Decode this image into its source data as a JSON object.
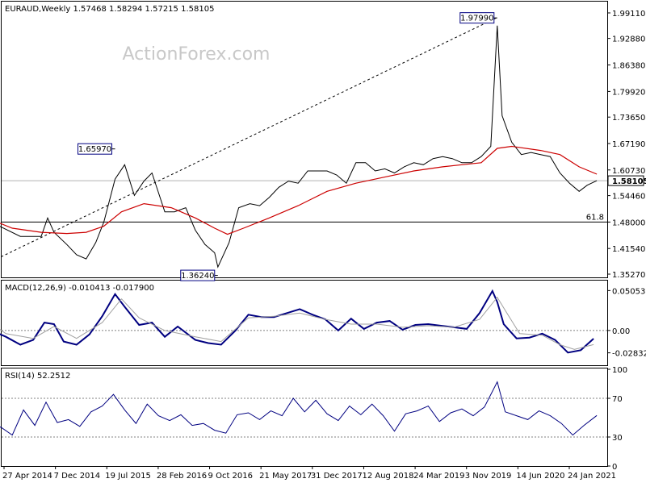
{
  "chart_data": [
    {
      "type": "line",
      "panel": "price",
      "title": "EURAUD,Weekly  1.57468 1.58294 1.57215 1.58105",
      "watermark": "ActionForex.com",
      "y_ticks": [
        "1.99110",
        "1.92880",
        "1.86380",
        "1.79920",
        "1.73650",
        "1.67190",
        "1.60730",
        "1.54460",
        "1.48000",
        "1.41540",
        "1.35270"
      ],
      "ylim": [
        1.3527,
        1.9911
      ],
      "current_price": 1.58105,
      "current_price_label": "1.58105",
      "fib_level": 1.48,
      "fib_label": "61.8",
      "callouts": [
        {
          "label": "1.97990",
          "date": "2020-03-16",
          "value": 1.9799
        },
        {
          "label": "1.65970",
          "date": "2015-08-24",
          "value": 1.6597
        },
        {
          "label": "1.36240",
          "date": "2016-11-14",
          "value": 1.3624
        }
      ],
      "trendline": [
        {
          "date": "2014-04-14",
          "value": 1.395
        },
        {
          "date": "2020-03-16",
          "value": 1.9799
        }
      ],
      "series": [
        {
          "color": "#000000",
          "x": [
            "2014-01-06",
            "2014-04-07",
            "2014-07-07",
            "2014-10-06",
            "2014-11-03",
            "2014-12-01",
            "2015-01-26",
            "2015-03-09",
            "2015-04-20",
            "2015-06-01",
            "2015-07-06",
            "2015-08-24",
            "2015-10-05",
            "2015-11-16",
            "2015-12-28",
            "2016-02-01",
            "2016-03-28",
            "2016-05-09",
            "2016-06-27",
            "2016-08-08",
            "2016-09-19",
            "2016-10-31",
            "2016-11-14",
            "2017-01-02",
            "2017-02-13",
            "2017-04-03",
            "2017-05-15",
            "2017-06-26",
            "2017-08-07",
            "2017-09-18",
            "2017-10-30",
            "2017-12-11",
            "2018-01-22",
            "2018-03-05",
            "2018-04-16",
            "2018-05-28",
            "2018-07-09",
            "2018-08-20",
            "2018-10-01",
            "2018-11-12",
            "2018-12-24",
            "2019-02-04",
            "2019-03-18",
            "2019-04-29",
            "2019-06-10",
            "2019-07-22",
            "2019-09-02",
            "2019-10-14",
            "2019-11-25",
            "2020-01-06",
            "2020-02-17",
            "2020-03-16",
            "2020-04-06",
            "2020-05-18",
            "2020-06-29",
            "2020-08-10",
            "2020-09-21",
            "2020-11-02",
            "2020-12-14",
            "2021-01-25",
            "2021-03-08",
            "2021-04-12",
            "2021-05-24"
          ],
          "values": [
            1.505,
            1.47,
            1.445,
            1.445,
            1.49,
            1.455,
            1.425,
            1.4,
            1.39,
            1.43,
            1.48,
            1.585,
            1.62,
            1.545,
            1.58,
            1.6,
            1.505,
            1.505,
            1.515,
            1.46,
            1.425,
            1.405,
            1.37,
            1.43,
            1.515,
            1.525,
            1.52,
            1.54,
            1.565,
            1.58,
            1.575,
            1.605,
            1.605,
            1.605,
            1.595,
            1.575,
            1.625,
            1.625,
            1.605,
            1.61,
            1.6,
            1.615,
            1.625,
            1.62,
            1.635,
            1.64,
            1.635,
            1.625,
            1.625,
            1.64,
            1.665,
            1.96,
            1.74,
            1.675,
            1.645,
            1.65,
            1.645,
            1.64,
            1.6,
            1.575,
            1.555,
            1.57,
            1.581
          ]
        },
        {
          "color": "#cc0000",
          "x": [
            "2014-01-06",
            "2014-06-02",
            "2014-10-06",
            "2015-01-26",
            "2015-04-20",
            "2015-07-06",
            "2015-09-21",
            "2015-12-28",
            "2016-04-25",
            "2016-08-08",
            "2016-10-31",
            "2016-12-26",
            "2017-03-06",
            "2017-06-26",
            "2017-10-30",
            "2018-03-05",
            "2018-07-09",
            "2018-11-12",
            "2019-03-18",
            "2019-07-22",
            "2019-10-14",
            "2020-01-06",
            "2020-03-16",
            "2020-05-18",
            "2020-09-21",
            "2020-12-14",
            "2021-03-08",
            "2021-05-24"
          ],
          "values": [
            1.498,
            1.465,
            1.455,
            1.452,
            1.455,
            1.47,
            1.505,
            1.525,
            1.515,
            1.49,
            1.465,
            1.45,
            1.465,
            1.49,
            1.52,
            1.555,
            1.575,
            1.59,
            1.605,
            1.615,
            1.62,
            1.625,
            1.66,
            1.665,
            1.655,
            1.645,
            1.615,
            1.597
          ]
        }
      ]
    },
    {
      "type": "line",
      "panel": "macd",
      "title": "MACD(12,26,9) -0.010413 -0.017900",
      "y_ticks": [
        "0.05053",
        "0.00",
        "-0.028323"
      ],
      "ylim": [
        -0.042,
        0.056
      ],
      "series": [
        {
          "color": "#000080",
          "x": [
            "2014-01-06",
            "2014-03-03",
            "2014-05-05",
            "2014-07-07",
            "2014-09-01",
            "2014-10-20",
            "2014-12-01",
            "2015-01-12",
            "2015-03-09",
            "2015-05-04",
            "2015-06-29",
            "2015-08-24",
            "2015-10-05",
            "2015-12-07",
            "2016-02-01",
            "2016-03-28",
            "2016-05-23",
            "2016-08-08",
            "2016-10-03",
            "2016-11-28",
            "2017-01-30",
            "2017-03-27",
            "2017-05-22",
            "2017-07-17",
            "2017-09-11",
            "2017-11-06",
            "2018-01-01",
            "2018-02-26",
            "2018-04-23",
            "2018-06-18",
            "2018-08-13",
            "2018-10-08",
            "2018-12-03",
            "2019-01-28",
            "2019-03-25",
            "2019-05-20",
            "2019-07-15",
            "2019-09-09",
            "2019-11-04",
            "2019-12-30",
            "2020-02-24",
            "2020-03-16",
            "2020-04-13",
            "2020-06-08",
            "2020-08-03",
            "2020-09-28",
            "2020-11-23",
            "2021-01-18",
            "2021-03-15",
            "2021-05-10"
          ],
          "values": [
            0.012,
            0.0,
            -0.008,
            -0.018,
            -0.012,
            0.01,
            0.008,
            -0.014,
            -0.018,
            -0.005,
            0.018,
            0.046,
            0.03,
            0.007,
            0.01,
            -0.008,
            0.005,
            -0.012,
            -0.016,
            -0.018,
            0.0,
            0.02,
            0.017,
            0.017,
            0.022,
            0.027,
            0.02,
            0.014,
            0.0,
            0.015,
            0.002,
            0.01,
            0.012,
            0.001,
            0.007,
            0.008,
            0.006,
            0.004,
            0.002,
            0.022,
            0.05,
            0.036,
            0.008,
            -0.01,
            -0.009,
            -0.004,
            -0.012,
            -0.028,
            -0.025,
            -0.0104
          ]
        },
        {
          "color": "#a0a0a0",
          "x": [
            "2014-01-06",
            "2014-05-05",
            "2014-09-01",
            "2014-12-01",
            "2015-03-09",
            "2015-06-29",
            "2015-09-21",
            "2015-12-07",
            "2016-03-28",
            "2016-08-08",
            "2016-11-28",
            "2017-03-27",
            "2017-07-17",
            "2017-11-06",
            "2018-02-26",
            "2018-06-18",
            "2018-10-08",
            "2019-01-28",
            "2019-05-20",
            "2019-09-09",
            "2019-12-30",
            "2020-03-16",
            "2020-04-27",
            "2020-06-22",
            "2020-09-28",
            "2020-12-14",
            "2021-02-15",
            "2021-05-10"
          ],
          "values": [
            0.02,
            -0.004,
            -0.01,
            0.005,
            -0.01,
            0.01,
            0.04,
            0.016,
            0.0,
            -0.008,
            -0.014,
            0.016,
            0.018,
            0.022,
            0.014,
            0.008,
            0.008,
            0.004,
            0.006,
            0.004,
            0.014,
            0.042,
            0.022,
            -0.004,
            -0.006,
            -0.018,
            -0.024,
            -0.0179
          ]
        }
      ]
    },
    {
      "type": "line",
      "panel": "rsi",
      "title": "RSI(14) 52.2512",
      "y_ticks": [
        "100",
        "70",
        "30",
        "0"
      ],
      "ylim": [
        0,
        100
      ],
      "levels": [
        70,
        30
      ],
      "series": [
        {
          "color": "#000080",
          "x": [
            "2014-01-06",
            "2014-02-24",
            "2014-04-14",
            "2014-06-02",
            "2014-07-21",
            "2014-09-08",
            "2014-10-27",
            "2014-12-15",
            "2015-02-02",
            "2015-03-23",
            "2015-05-11",
            "2015-06-29",
            "2015-08-17",
            "2015-10-05",
            "2015-11-23",
            "2016-01-11",
            "2016-02-29",
            "2016-04-18",
            "2016-06-06",
            "2016-07-25",
            "2016-09-12",
            "2016-10-31",
            "2016-12-19",
            "2017-02-06",
            "2017-03-27",
            "2017-05-15",
            "2017-07-03",
            "2017-08-21",
            "2017-10-09",
            "2017-11-27",
            "2018-01-15",
            "2018-03-05",
            "2018-04-23",
            "2018-06-11",
            "2018-07-30",
            "2018-09-17",
            "2018-11-05",
            "2018-12-24",
            "2019-02-11",
            "2019-04-01",
            "2019-05-20",
            "2019-07-08",
            "2019-08-26",
            "2019-10-14",
            "2019-12-02",
            "2020-01-20",
            "2020-03-16",
            "2020-04-20",
            "2020-06-08",
            "2020-07-27",
            "2020-09-14",
            "2020-11-02",
            "2020-12-21",
            "2021-02-08",
            "2021-03-29",
            "2021-05-24"
          ],
          "values": [
            52,
            44,
            40,
            32,
            58,
            42,
            66,
            45,
            48,
            41,
            56,
            62,
            74,
            58,
            44,
            64,
            52,
            47,
            53,
            42,
            44,
            37,
            34,
            53,
            55,
            48,
            57,
            52,
            70,
            56,
            68,
            54,
            47,
            62,
            53,
            64,
            52,
            36,
            54,
            57,
            62,
            46,
            55,
            59,
            52,
            61,
            87,
            56,
            52,
            48,
            57,
            52,
            44,
            32,
            42,
            52.25
          ]
        }
      ]
    }
  ],
  "x_axis_labels": [
    "27 Apr 2014",
    "7 Dec 2014",
    "19 Jul 2015",
    "28 Feb 2016",
    "9 Oct 2016",
    "21 May 2017",
    "31 Dec 2017",
    "12 Aug 2018",
    "24 Mar 2019",
    "3 Nov 2019",
    "14 Jun 2020",
    "24 Jan 2021"
  ],
  "colors": {
    "price": "#000000",
    "moving_average": "#cc0000",
    "indicator": "#000080",
    "signal": "#a0a0a0",
    "callout_border": "#000080",
    "watermark": "#c8c8c8",
    "grid_level": "#000000"
  }
}
